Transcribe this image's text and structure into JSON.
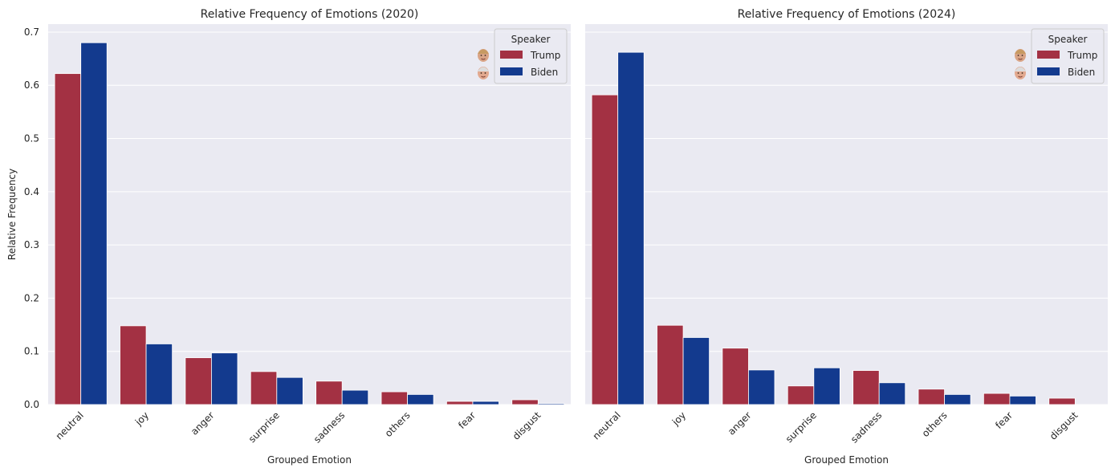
{
  "chart_data": [
    {
      "type": "bar",
      "title": "Relative Frequency of Emotions (2020)",
      "xlabel": "Grouped Emotion",
      "ylabel": "Relative Frequency",
      "categories": [
        "neutral",
        "joy",
        "anger",
        "surprise",
        "sadness",
        "others",
        "fear",
        "disgust"
      ],
      "ylim": [
        0,
        0.715
      ],
      "yticks": [
        "0.0",
        "0.1",
        "0.2",
        "0.3",
        "0.4",
        "0.5",
        "0.6",
        "0.7"
      ],
      "grid": true,
      "legend": {
        "title": "Speaker",
        "placement": "top-right"
      },
      "series": [
        {
          "name": "Trump",
          "color": "#a33143",
          "values": [
            0.622,
            0.148,
            0.088,
            0.062,
            0.044,
            0.024,
            0.006,
            0.009
          ]
        },
        {
          "name": "Biden",
          "color": "#133a8e",
          "values": [
            0.68,
            0.114,
            0.097,
            0.051,
            0.027,
            0.019,
            0.006,
            0.002
          ]
        }
      ]
    },
    {
      "type": "bar",
      "title": "Relative Frequency of Emotions (2024)",
      "xlabel": "Grouped Emotion",
      "ylabel": "",
      "categories": [
        "neutral",
        "joy",
        "anger",
        "surprise",
        "sadness",
        "others",
        "fear",
        "disgust"
      ],
      "ylim": [
        0,
        0.715
      ],
      "yticks": [],
      "grid": true,
      "legend": {
        "title": "Speaker",
        "placement": "top-right"
      },
      "series": [
        {
          "name": "Trump",
          "color": "#a33143",
          "values": [
            0.582,
            0.149,
            0.106,
            0.035,
            0.064,
            0.029,
            0.021,
            0.012
          ]
        },
        {
          "name": "Biden",
          "color": "#133a8e",
          "values": [
            0.662,
            0.126,
            0.065,
            0.069,
            0.041,
            0.019,
            0.016,
            0.0
          ]
        }
      ]
    }
  ],
  "colors": {
    "plot_background": "#eaeaf2",
    "grid": "#ffffff",
    "text": "#262626"
  },
  "icons": [
    "trump-face-icon",
    "biden-face-icon"
  ]
}
